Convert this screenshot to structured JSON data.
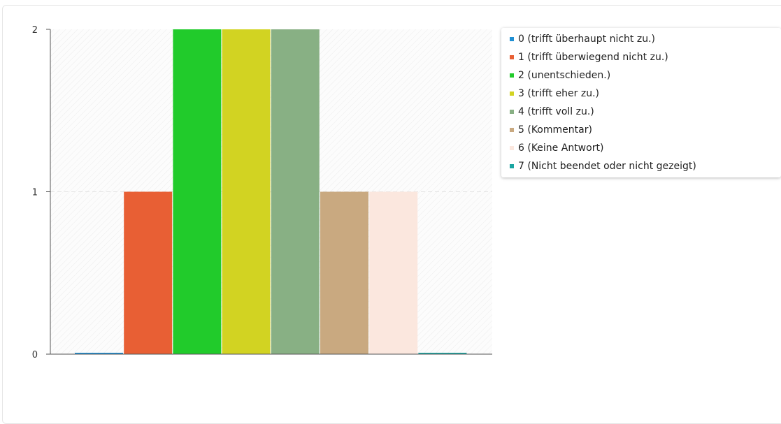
{
  "chart_data": {
    "type": "bar",
    "categories": [
      "0 (trifft überhaupt nicht zu.)",
      "1 (trifft überwiegend nicht zu.)",
      "2 (unentschieden.)",
      "3 (trifft eher zu.)",
      "4 (trifft voll zu.)",
      "5 (Kommentar)",
      "6 (Keine Antwort)",
      "7 (Nicht beendet oder nicht gezeigt)"
    ],
    "values": [
      0,
      1,
      2,
      2,
      2,
      1,
      1,
      0
    ],
    "colors": [
      "#1f8fd3",
      "#e85f34",
      "#21cb2b",
      "#d2d322",
      "#88b084",
      "#c9a980",
      "#fbe7de",
      "#1aa5a1"
    ],
    "yticks": [
      "0",
      "1",
      "2"
    ],
    "ylim": [
      0,
      2
    ],
    "grid": true,
    "legend_position": "top-right"
  }
}
